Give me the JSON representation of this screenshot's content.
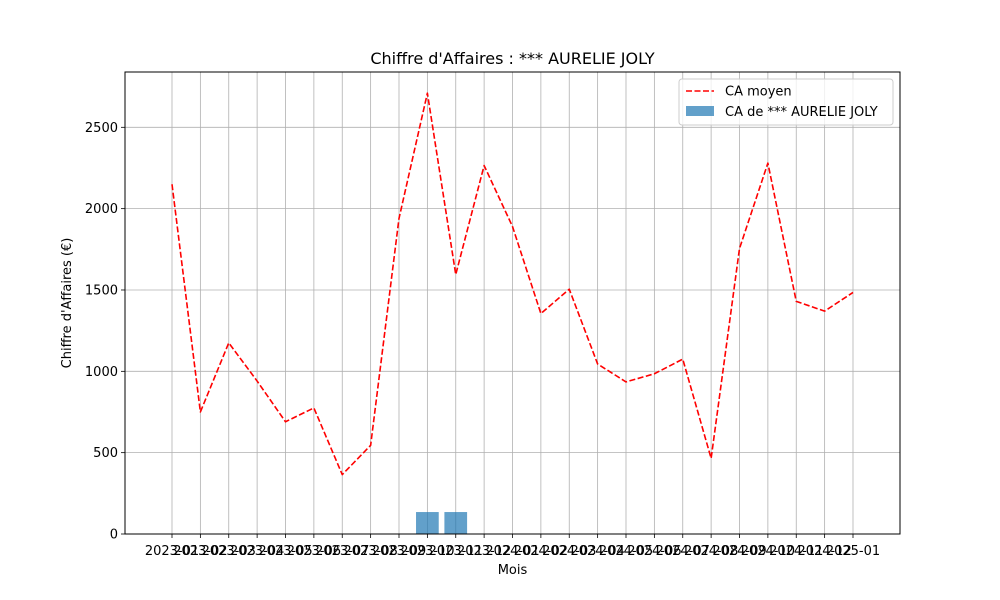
{
  "chart_data": {
    "type": "bar",
    "title": "Chiffre d'Affaires : *** AURELIE JOLY",
    "xlabel": "Mois",
    "ylabel": "Chiffre d'Affaires (€)",
    "ylim": [
      0,
      2840
    ],
    "yticks": [
      0,
      500,
      1000,
      1500,
      2000,
      2500
    ],
    "grid": true,
    "legend_position": "top-right",
    "categories": [
      "2023-01",
      "2023-02",
      "2023-03",
      "2023-04",
      "2023-05",
      "2023-06",
      "2023-07",
      "2023-08",
      "2023-09",
      "2023-10",
      "2023-11",
      "2023-12",
      "2024-01",
      "2024-02",
      "2024-03",
      "2024-04",
      "2024-05",
      "2024-06",
      "2024-07",
      "2024-08",
      "2024-09",
      "2024-10",
      "2024-11",
      "2024-12",
      "2025-01"
    ],
    "series": [
      {
        "name": "CA moyen",
        "kind": "line",
        "style": "dashed",
        "color": "#ff0000",
        "values": [
          2150,
          750,
          1175,
          940,
          690,
          775,
          365,
          545,
          1940,
          2710,
          1595,
          2265,
          1890,
          1355,
          1505,
          1045,
          935,
          985,
          1075,
          465,
          1755,
          2280,
          1430,
          1370,
          1485
        ]
      },
      {
        "name": "CA de *** AURELIE JOLY",
        "kind": "bar",
        "color": "#1f77b4",
        "alpha": 0.7,
        "values": [
          null,
          null,
          null,
          null,
          null,
          null,
          null,
          null,
          null,
          135,
          135,
          null,
          null,
          null,
          null,
          null,
          null,
          null,
          null,
          null,
          null,
          null,
          null,
          null,
          null
        ]
      }
    ]
  }
}
